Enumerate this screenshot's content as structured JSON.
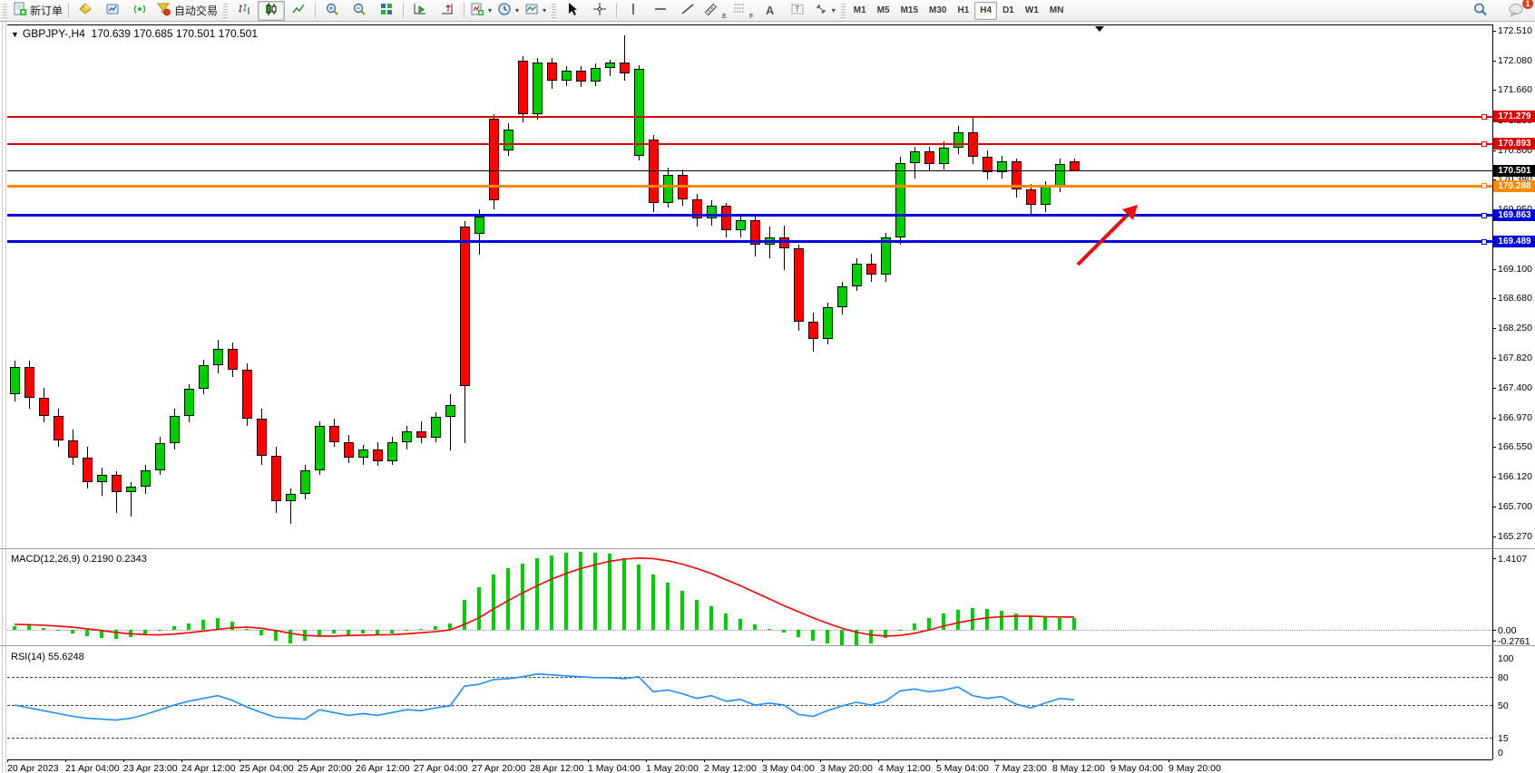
{
  "toolbar": {
    "new_order_label": "新订单",
    "autotrade_label": "自动交易",
    "timeframes": [
      "M1",
      "M5",
      "M15",
      "M30",
      "H1",
      "H4",
      "D1",
      "W1",
      "MN"
    ],
    "active_timeframe": "H4",
    "notification_count": "1",
    "text_tool_label": "A",
    "channel_suffix": "E",
    "fibo_suffix": "F"
  },
  "chart": {
    "symbol_period": "GBPJPY-,H4",
    "ohlc_line": "170.639 170.685 170.501 170.501"
  },
  "price_axis_ticks": [
    "172.510",
    "172.080",
    "171.660",
    "171.230",
    "170.800",
    "170.380",
    "169.950",
    "169.520",
    "169.100",
    "168.680",
    "168.250",
    "167.820",
    "167.400",
    "166.970",
    "166.550",
    "166.120",
    "165.700",
    "165.270"
  ],
  "hlines": [
    {
      "price": 171.279,
      "label": "171.279",
      "color": "#dd0000",
      "thickness": 2
    },
    {
      "price": 170.893,
      "label": "170.893",
      "color": "#dd0000",
      "thickness": 2
    },
    {
      "price": 170.501,
      "label": "170.501",
      "color": "#000000",
      "thickness": 1
    },
    {
      "price": 170.288,
      "label": "170.288",
      "color": "#ff8a00",
      "thickness": 3
    },
    {
      "price": 169.863,
      "label": "169.863",
      "color": "#0000dd",
      "thickness": 3
    },
    {
      "price": 169.489,
      "label": "169.489",
      "color": "#0000dd",
      "thickness": 3
    }
  ],
  "time_axis": [
    "20 Apr 2023",
    "21 Apr 04:00",
    "23 Apr 23:00",
    "24 Apr 12:00",
    "25 Apr 04:00",
    "25 Apr 20:00",
    "26 Apr 12:00",
    "27 Apr 04:00",
    "27 Apr 20:00",
    "28 Apr 12:00",
    "1 May 04:00",
    "1 May 20:00",
    "2 May 12:00",
    "3 May 04:00",
    "3 May 20:00",
    "4 May 12:00",
    "5 May 04:00",
    "7 May 23:00",
    "8 May 12:00",
    "9 May 04:00",
    "9 May 20:00"
  ],
  "macd": {
    "label": "MACD(12,26,9) 0.2190 0.2343",
    "axis_max": "1.4107",
    "axis_zero": "0.00",
    "axis_min": "-0.2761"
  },
  "rsi": {
    "label": "RSI(14) 55.6248",
    "axis_labels": [
      "100",
      "80",
      "50",
      "15",
      "0"
    ],
    "dashed_levels": [
      80,
      50,
      15
    ]
  },
  "chart_data": {
    "type": "candlestick",
    "title": "GBPJPY- H4",
    "price_axis_range": [
      165.1,
      172.6
    ],
    "colors": {
      "up": "#00ce00",
      "down": "#ff0000",
      "wick": "#000000",
      "macd_histogram": "#00ce00",
      "macd_signal": "#ff0000",
      "rsi_line": "#1e90ff",
      "annotation_arrow": "#e81010"
    },
    "candles": [
      [
        167.3,
        167.78,
        167.2,
        167.7
      ],
      [
        167.7,
        167.78,
        167.1,
        167.25
      ],
      [
        167.25,
        167.4,
        166.9,
        167.0
      ],
      [
        167.0,
        167.1,
        166.55,
        166.65
      ],
      [
        166.65,
        166.8,
        166.3,
        166.4
      ],
      [
        166.4,
        166.55,
        165.95,
        166.05
      ],
      [
        166.05,
        166.25,
        165.85,
        166.15
      ],
      [
        166.15,
        166.2,
        165.6,
        165.9
      ],
      [
        165.9,
        166.05,
        165.55,
        165.98
      ],
      [
        165.98,
        166.3,
        165.88,
        166.22
      ],
      [
        166.22,
        166.7,
        166.15,
        166.6
      ],
      [
        166.6,
        167.1,
        166.52,
        167.0
      ],
      [
        167.0,
        167.45,
        166.9,
        167.38
      ],
      [
        167.38,
        167.8,
        167.3,
        167.72
      ],
      [
        167.72,
        168.08,
        167.6,
        167.95
      ],
      [
        167.95,
        168.05,
        167.55,
        167.65
      ],
      [
        167.65,
        167.75,
        166.85,
        166.95
      ],
      [
        166.95,
        167.1,
        166.3,
        166.42
      ],
      [
        166.42,
        166.55,
        165.6,
        165.78
      ],
      [
        165.78,
        165.95,
        165.45,
        165.88
      ],
      [
        165.88,
        166.3,
        165.8,
        166.22
      ],
      [
        166.22,
        166.92,
        166.15,
        166.85
      ],
      [
        166.85,
        166.95,
        166.55,
        166.62
      ],
      [
        166.62,
        166.72,
        166.32,
        166.4
      ],
      [
        166.4,
        166.58,
        166.3,
        166.52
      ],
      [
        166.52,
        166.62,
        166.28,
        166.35
      ],
      [
        166.35,
        166.7,
        166.3,
        166.62
      ],
      [
        166.62,
        166.85,
        166.52,
        166.78
      ],
      [
        166.78,
        166.92,
        166.6,
        166.68
      ],
      [
        166.68,
        167.05,
        166.62,
        166.98
      ],
      [
        166.98,
        167.3,
        166.5,
        167.15
      ],
      [
        169.7,
        169.78,
        166.6,
        167.42
      ],
      [
        169.6,
        169.95,
        169.3,
        169.85
      ],
      [
        171.25,
        171.32,
        169.95,
        170.08
      ],
      [
        170.8,
        171.18,
        170.72,
        171.1
      ],
      [
        172.08,
        172.15,
        171.2,
        171.32
      ],
      [
        171.32,
        172.12,
        171.24,
        172.05
      ],
      [
        172.05,
        172.12,
        171.68,
        171.8
      ],
      [
        171.8,
        172.0,
        171.72,
        171.94
      ],
      [
        171.94,
        172.0,
        171.7,
        171.78
      ],
      [
        171.78,
        172.04,
        171.72,
        171.98
      ],
      [
        171.98,
        172.1,
        171.86,
        172.06
      ],
      [
        172.06,
        172.45,
        171.8,
        171.9
      ],
      [
        170.72,
        172.02,
        170.65,
        171.96
      ],
      [
        170.95,
        171.02,
        169.92,
        170.05
      ],
      [
        170.05,
        170.55,
        169.98,
        170.45
      ],
      [
        170.45,
        170.52,
        170.0,
        170.1
      ],
      [
        170.1,
        170.18,
        169.7,
        169.82
      ],
      [
        169.82,
        170.08,
        169.72,
        170.0
      ],
      [
        170.0,
        170.05,
        169.55,
        169.65
      ],
      [
        169.65,
        169.88,
        169.55,
        169.8
      ],
      [
        169.8,
        169.85,
        169.28,
        169.45
      ],
      [
        169.45,
        169.7,
        169.25,
        169.55
      ],
      [
        169.55,
        169.72,
        169.08,
        169.4
      ],
      [
        169.4,
        169.45,
        168.22,
        168.35
      ],
      [
        168.35,
        168.48,
        167.92,
        168.1
      ],
      [
        168.1,
        168.62,
        168.02,
        168.55
      ],
      [
        168.55,
        168.92,
        168.45,
        168.85
      ],
      [
        168.85,
        169.25,
        168.78,
        169.18
      ],
      [
        169.18,
        169.32,
        168.92,
        169.02
      ],
      [
        169.02,
        169.62,
        168.92,
        169.55
      ],
      [
        169.55,
        170.7,
        169.45,
        170.62
      ],
      [
        170.62,
        170.85,
        170.4,
        170.78
      ],
      [
        170.78,
        170.85,
        170.5,
        170.6
      ],
      [
        170.6,
        170.92,
        170.52,
        170.84
      ],
      [
        170.84,
        171.15,
        170.75,
        171.06
      ],
      [
        171.06,
        171.28,
        170.6,
        170.7
      ],
      [
        170.7,
        170.8,
        170.38,
        170.48
      ],
      [
        170.48,
        170.72,
        170.4,
        170.64
      ],
      [
        170.64,
        170.68,
        170.12,
        170.24
      ],
      [
        170.24,
        170.32,
        169.86,
        170.02
      ],
      [
        170.02,
        170.36,
        169.92,
        170.28
      ],
      [
        170.28,
        170.68,
        170.2,
        170.6
      ],
      [
        170.639,
        170.685,
        170.501,
        170.501
      ]
    ],
    "macd_histogram": [
      0.06,
      0.08,
      0.03,
      -0.02,
      -0.07,
      -0.11,
      -0.14,
      -0.16,
      -0.13,
      -0.08,
      -0.02,
      0.06,
      0.12,
      0.18,
      0.22,
      0.15,
      0.02,
      -0.1,
      -0.2,
      -0.24,
      -0.2,
      -0.1,
      -0.06,
      -0.09,
      -0.07,
      -0.09,
      -0.06,
      -0.02,
      0.02,
      0.06,
      0.12,
      0.55,
      0.78,
      1.0,
      1.12,
      1.2,
      1.3,
      1.35,
      1.39,
      1.41,
      1.4,
      1.37,
      1.3,
      1.18,
      1.0,
      0.85,
      0.7,
      0.55,
      0.42,
      0.3,
      0.2,
      0.1,
      0.02,
      -0.05,
      -0.13,
      -0.2,
      -0.25,
      -0.27,
      -0.276,
      -0.24,
      -0.15,
      -0.02,
      0.12,
      0.22,
      0.3,
      0.36,
      0.39,
      0.38,
      0.35,
      0.3,
      0.26,
      0.23,
      0.22,
      0.219
    ],
    "macd_signal": [
      0.1,
      0.095,
      0.085,
      0.07,
      0.05,
      0.02,
      -0.01,
      -0.045,
      -0.07,
      -0.085,
      -0.09,
      -0.075,
      -0.05,
      -0.02,
      0.01,
      0.04,
      0.05,
      0.03,
      -0.01,
      -0.06,
      -0.1,
      -0.11,
      -0.11,
      -0.1,
      -0.095,
      -0.09,
      -0.085,
      -0.07,
      -0.05,
      -0.03,
      0.0,
      0.1,
      0.22,
      0.38,
      0.53,
      0.67,
      0.8,
      0.92,
      1.02,
      1.11,
      1.18,
      1.24,
      1.28,
      1.3,
      1.29,
      1.25,
      1.19,
      1.11,
      1.02,
      0.91,
      0.8,
      0.68,
      0.56,
      0.44,
      0.33,
      0.22,
      0.12,
      0.03,
      -0.04,
      -0.09,
      -0.11,
      -0.1,
      -0.06,
      0.0,
      0.07,
      0.13,
      0.18,
      0.22,
      0.24,
      0.25,
      0.25,
      0.24,
      0.235,
      0.234
    ],
    "rsi_values": [
      50,
      47,
      44,
      41,
      38,
      36,
      35,
      34,
      36,
      40,
      45,
      50,
      54,
      57,
      60,
      55,
      48,
      42,
      37,
      36,
      35,
      45,
      42,
      39,
      41,
      39,
      42,
      45,
      44,
      47,
      49,
      70,
      72,
      77,
      78,
      80,
      83,
      82,
      81,
      80,
      79,
      79,
      78,
      80,
      64,
      66,
      62,
      57,
      60,
      54,
      56,
      50,
      52,
      50,
      40,
      38,
      44,
      49,
      53,
      50,
      54,
      65,
      67,
      64,
      66,
      69,
      60,
      57,
      59,
      51,
      47,
      52,
      57,
      55.6
    ],
    "macd_range": [
      -0.2761,
      1.4107
    ],
    "rsi_range": [
      0,
      100
    ]
  }
}
